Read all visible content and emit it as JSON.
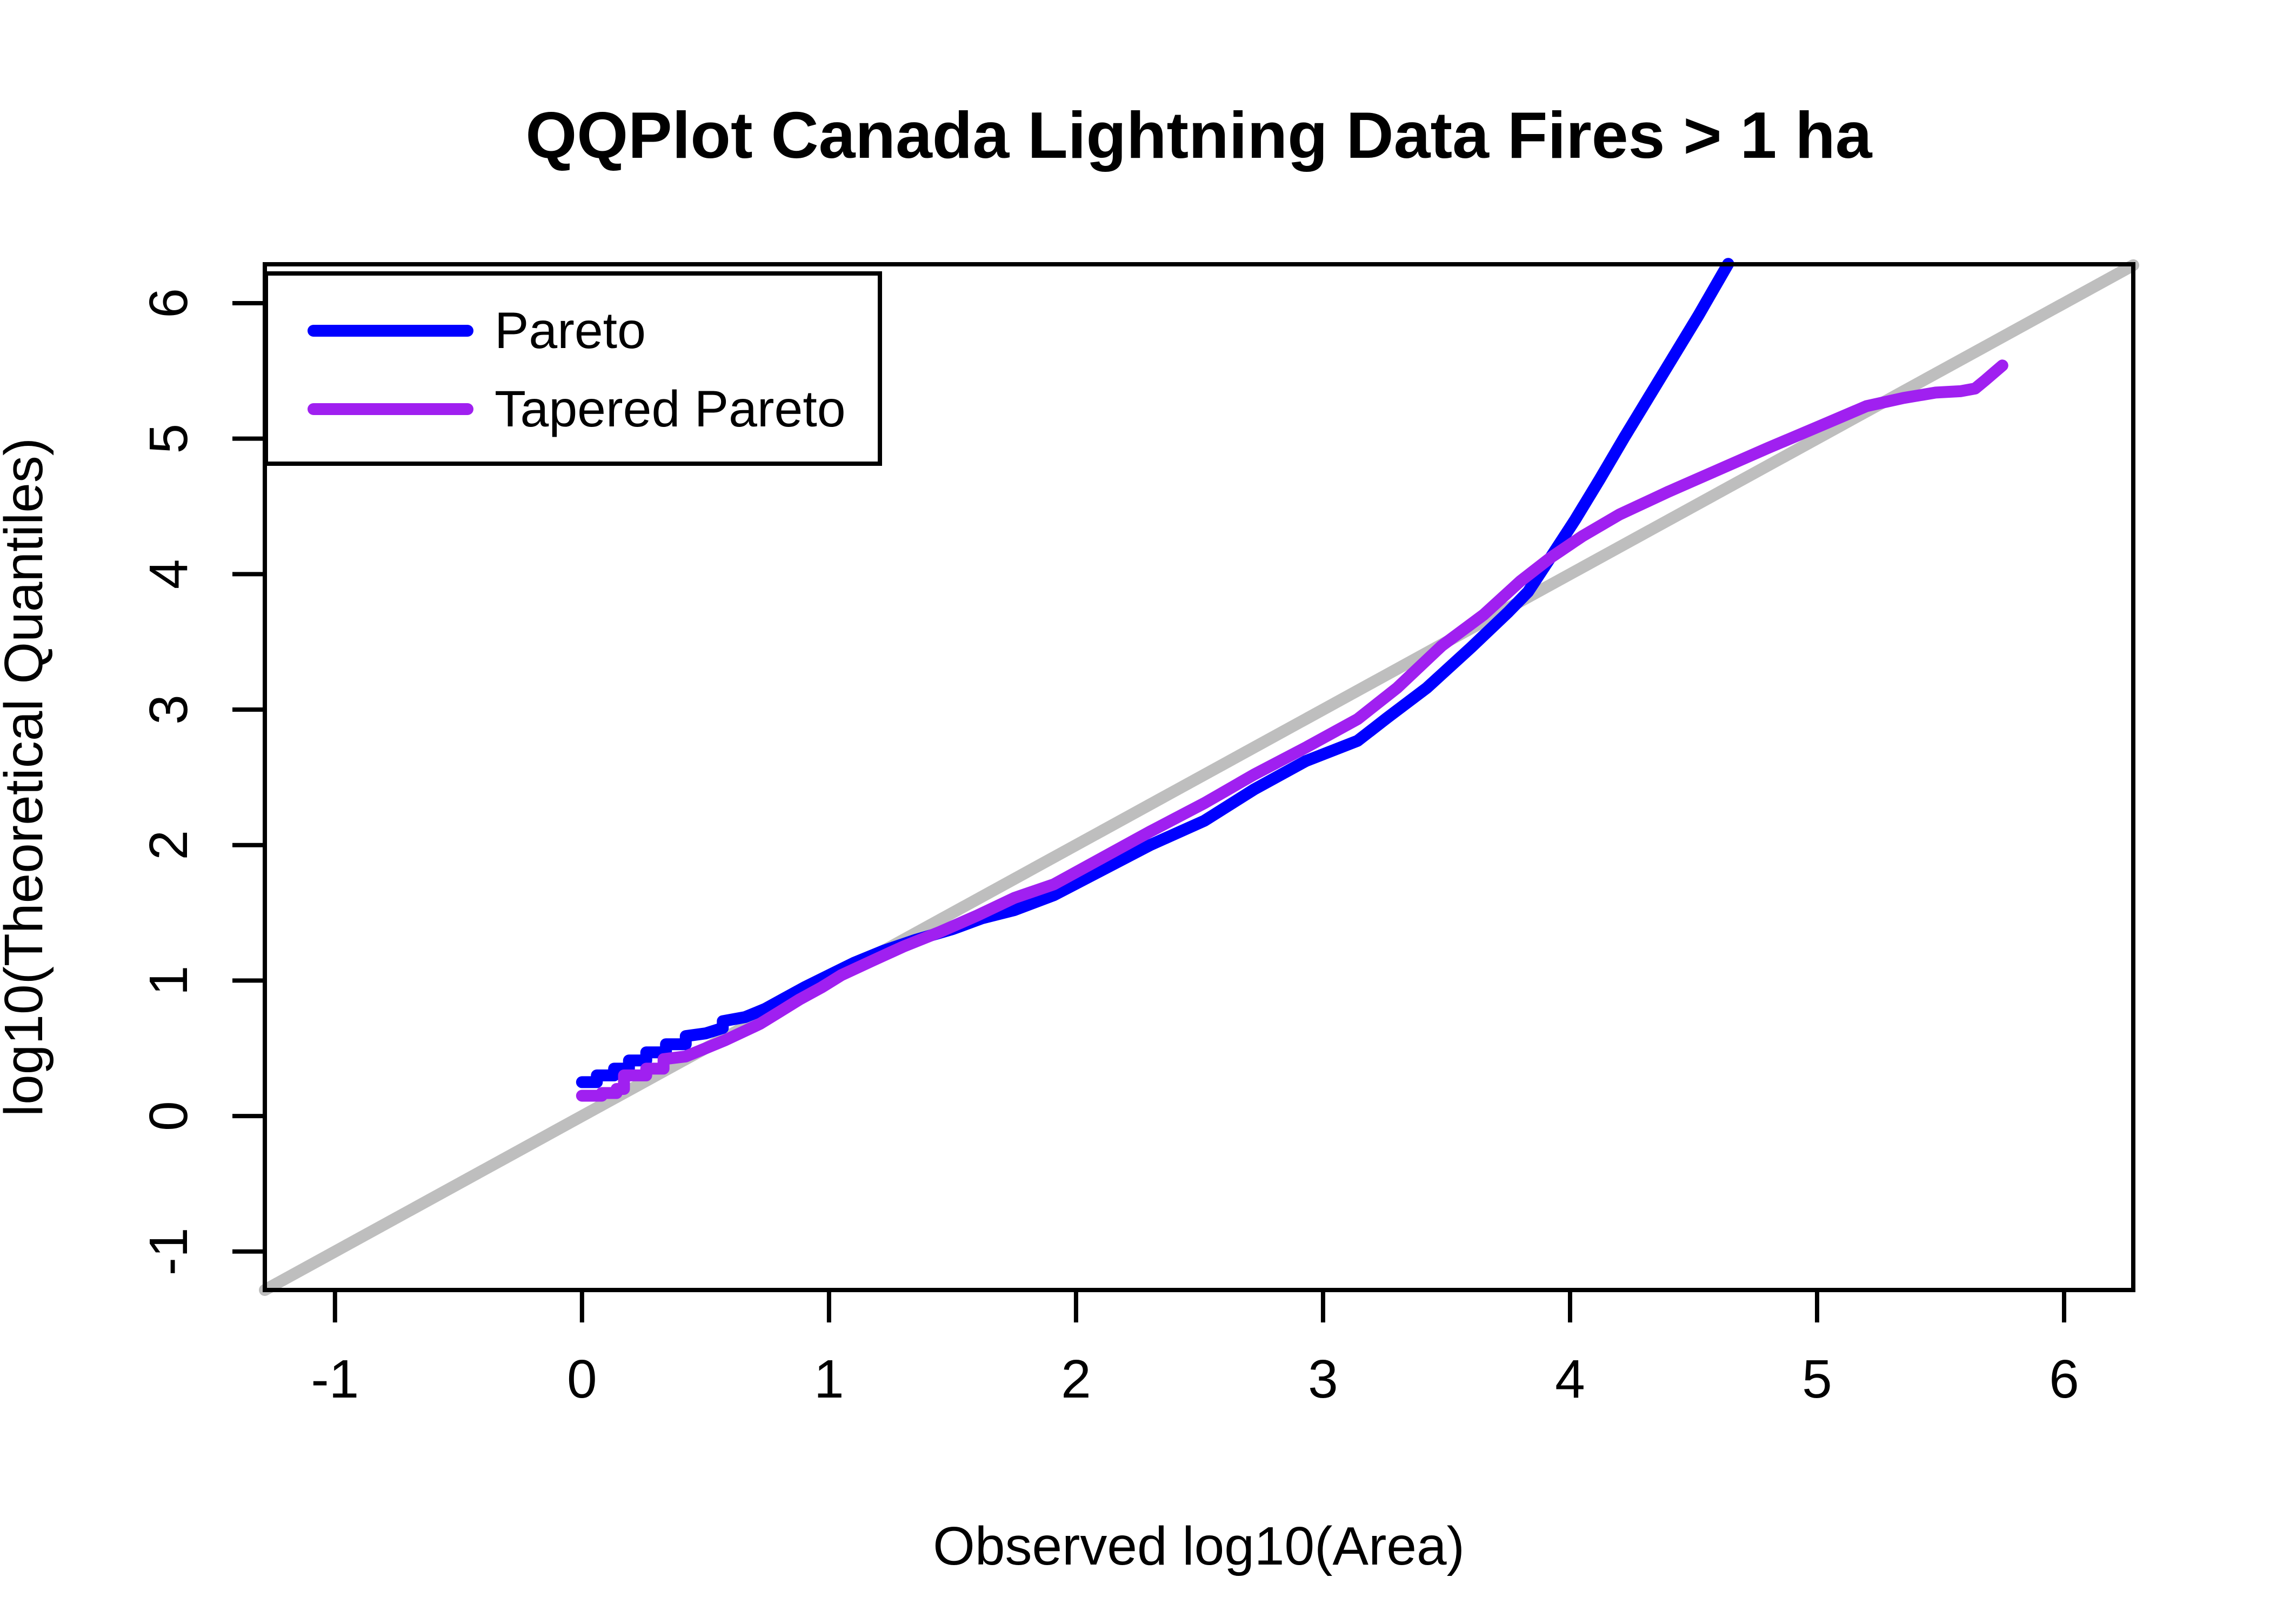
{
  "chart_data": {
    "type": "line",
    "title": "QQPlot Canada Lightning Data Fires > 1 ha",
    "xlabel": "Observed log10(Area)",
    "ylabel": "log10(Theoretical Quantiles)",
    "x_ticks": [
      -1,
      0,
      1,
      2,
      3,
      4,
      5,
      6
    ],
    "y_ticks": [
      -1,
      0,
      1,
      2,
      3,
      4,
      5,
      6
    ],
    "xlim": [
      -1.284,
      6.28
    ],
    "ylim": [
      -1.284,
      6.287
    ],
    "grid": false,
    "legend_position": "top-left",
    "reference_line": {
      "name": "identity-line",
      "color": "#BEBEBE",
      "from": [
        -1.284,
        -1.284
      ],
      "to": [
        6.28,
        6.28
      ]
    },
    "series": [
      {
        "name": "Pareto",
        "color": "#0000FF",
        "points": [
          [
            0.0,
            0.25
          ],
          [
            0.06,
            0.25
          ],
          [
            0.06,
            0.3
          ],
          [
            0.13,
            0.3
          ],
          [
            0.13,
            0.35
          ],
          [
            0.19,
            0.35
          ],
          [
            0.19,
            0.41
          ],
          [
            0.26,
            0.41
          ],
          [
            0.26,
            0.47
          ],
          [
            0.34,
            0.47
          ],
          [
            0.34,
            0.53
          ],
          [
            0.42,
            0.53
          ],
          [
            0.42,
            0.59
          ],
          [
            0.5,
            0.61
          ],
          [
            0.57,
            0.65
          ],
          [
            0.57,
            0.7
          ],
          [
            0.66,
            0.73
          ],
          [
            0.74,
            0.79
          ],
          [
            0.82,
            0.87
          ],
          [
            0.9,
            0.95
          ],
          [
            1.0,
            1.04
          ],
          [
            1.1,
            1.13
          ],
          [
            1.22,
            1.22
          ],
          [
            1.35,
            1.3
          ],
          [
            1.5,
            1.38
          ],
          [
            1.62,
            1.46
          ],
          [
            1.75,
            1.52
          ],
          [
            1.91,
            1.63
          ],
          [
            2.1,
            1.81
          ],
          [
            2.3,
            2.0
          ],
          [
            2.52,
            2.18
          ],
          [
            2.72,
            2.41
          ],
          [
            2.93,
            2.62
          ],
          [
            3.14,
            2.77
          ],
          [
            3.26,
            2.94
          ],
          [
            3.42,
            3.16
          ],
          [
            3.6,
            3.46
          ],
          [
            3.75,
            3.72
          ],
          [
            3.83,
            3.87
          ],
          [
            3.92,
            4.12
          ],
          [
            4.02,
            4.4
          ],
          [
            4.12,
            4.7
          ],
          [
            4.22,
            5.01
          ],
          [
            4.32,
            5.31
          ],
          [
            4.42,
            5.61
          ],
          [
            4.52,
            5.91
          ],
          [
            4.64,
            6.29
          ]
        ]
      },
      {
        "name": "Tapered Pareto",
        "color": "#A020F0",
        "points": [
          [
            0.0,
            0.15
          ],
          [
            0.08,
            0.15
          ],
          [
            0.08,
            0.17
          ],
          [
            0.14,
            0.17
          ],
          [
            0.14,
            0.2
          ],
          [
            0.17,
            0.2
          ],
          [
            0.17,
            0.3
          ],
          [
            0.26,
            0.3
          ],
          [
            0.26,
            0.35
          ],
          [
            0.33,
            0.35
          ],
          [
            0.33,
            0.42
          ],
          [
            0.42,
            0.44
          ],
          [
            0.5,
            0.5
          ],
          [
            0.58,
            0.56
          ],
          [
            0.65,
            0.62
          ],
          [
            0.72,
            0.68
          ],
          [
            0.8,
            0.77
          ],
          [
            0.88,
            0.86
          ],
          [
            0.97,
            0.95
          ],
          [
            1.05,
            1.04
          ],
          [
            1.18,
            1.15
          ],
          [
            1.3,
            1.25
          ],
          [
            1.45,
            1.36
          ],
          [
            1.6,
            1.48
          ],
          [
            1.75,
            1.61
          ],
          [
            1.91,
            1.71
          ],
          [
            2.1,
            1.9
          ],
          [
            2.3,
            2.1
          ],
          [
            2.52,
            2.31
          ],
          [
            2.72,
            2.52
          ],
          [
            2.93,
            2.72
          ],
          [
            3.14,
            2.93
          ],
          [
            3.3,
            3.16
          ],
          [
            3.48,
            3.47
          ],
          [
            3.65,
            3.7
          ],
          [
            3.8,
            3.95
          ],
          [
            3.92,
            4.12
          ],
          [
            4.05,
            4.28
          ],
          [
            4.2,
            4.44
          ],
          [
            4.4,
            4.61
          ],
          [
            4.6,
            4.77
          ],
          [
            4.8,
            4.93
          ],
          [
            5.02,
            5.1
          ],
          [
            5.2,
            5.24
          ],
          [
            5.35,
            5.3
          ],
          [
            5.48,
            5.34
          ],
          [
            5.58,
            5.35
          ],
          [
            5.64,
            5.37
          ],
          [
            5.68,
            5.43
          ],
          [
            5.75,
            5.54
          ]
        ]
      }
    ],
    "legend": {
      "entries": [
        {
          "label": "Pareto",
          "color": "#0000FF"
        },
        {
          "label": "Tapered Pareto",
          "color": "#A020F0"
        }
      ]
    },
    "colors": {
      "axis": "#000000",
      "background": "#ffffff",
      "pareto": "#0000FF",
      "tapered_pareto": "#A020F0",
      "reference": "#BEBEBE"
    }
  }
}
